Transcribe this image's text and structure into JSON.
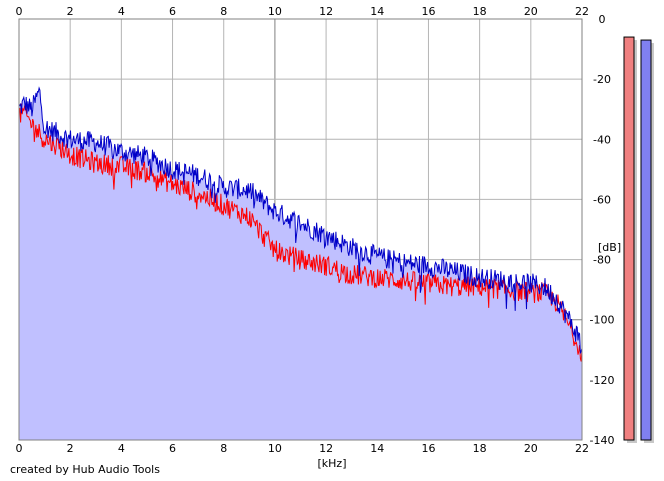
{
  "chart_data": {
    "type": "area",
    "xlabel": "[kHz]",
    "ylabel": "[dB]",
    "xlim": [
      0,
      22
    ],
    "ylim": [
      -140,
      0
    ],
    "x_ticks": [
      0,
      2,
      4,
      6,
      8,
      10,
      12,
      14,
      16,
      18,
      20,
      22
    ],
    "y_ticks": [
      0,
      -20,
      -40,
      -60,
      -80,
      -100,
      -120,
      -140
    ],
    "x_tick_labels": [
      "0",
      "2",
      "4",
      "6",
      "8",
      "10",
      "12",
      "14",
      "16",
      "18",
      "20",
      "22"
    ],
    "y_tick_labels": [
      "0",
      "-20",
      "-40",
      "-60",
      "-80",
      "-100",
      "-120",
      "-140"
    ],
    "grid": true,
    "series": [
      {
        "color": "#0000c8",
        "fill": "#c0c0ff",
        "x": [
          0,
          0.2,
          0.5,
          0.8,
          1.0,
          1.5,
          2.0,
          3.0,
          4.0,
          5.0,
          6.0,
          7.0,
          8.0,
          9.0,
          10.0,
          11.0,
          12.0,
          13.0,
          14.0,
          15.0,
          16.0,
          17.0,
          18.0,
          19.0,
          20.0,
          20.5,
          21.0,
          21.5,
          22.0
        ],
        "values": [
          -30,
          -28,
          -30,
          -24,
          -36,
          -38,
          -40,
          -41,
          -44,
          -46,
          -50,
          -52,
          -56,
          -57,
          -64,
          -68,
          -72,
          -76,
          -79,
          -81,
          -82,
          -84,
          -86,
          -87,
          -88,
          -89,
          -93,
          -100,
          -108
        ]
      },
      {
        "color": "#ff0000",
        "x": [
          0,
          0.2,
          0.5,
          0.8,
          1.0,
          1.5,
          2.0,
          3.0,
          4.0,
          5.0,
          6.0,
          7.0,
          8.0,
          9.0,
          10.0,
          11.0,
          12.0,
          13.0,
          14.0,
          15.0,
          16.0,
          17.0,
          18.0,
          19.0,
          20.0,
          20.5,
          21.0,
          21.5,
          22.0
        ],
        "values": [
          -32,
          -31,
          -35,
          -38,
          -40,
          -42,
          -45,
          -48,
          -49,
          -51,
          -55,
          -58,
          -62,
          -66,
          -77,
          -80,
          -82,
          -85,
          -86,
          -87,
          -88,
          -89,
          -89,
          -90,
          -91,
          -91,
          -94,
          -102,
          -111
        ]
      }
    ],
    "level_meters": [
      {
        "color": "#f08080",
        "value": -6
      },
      {
        "color": "#8080f0",
        "value": -7
      }
    ]
  },
  "credit": "created by Hub Audio Tools"
}
